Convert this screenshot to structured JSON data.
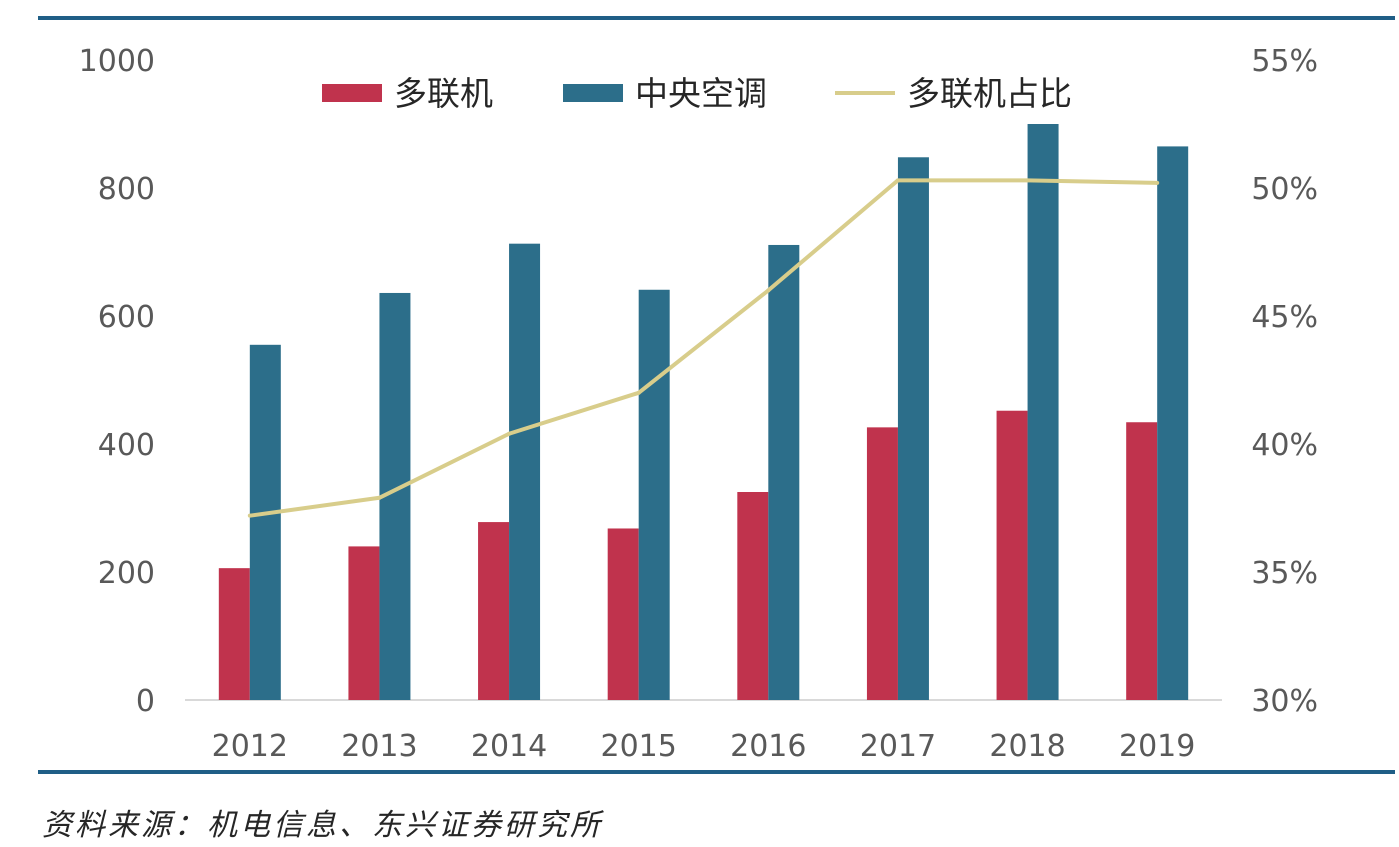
{
  "chart_data": {
    "type": "bar",
    "categories": [
      "2012",
      "2013",
      "2014",
      "2015",
      "2016",
      "2017",
      "2018",
      "2019"
    ],
    "series": [
      {
        "name": "多联机",
        "type": "bar",
        "axis": "left",
        "color": "#c0334d",
        "values": [
          206,
          240,
          278,
          268,
          325,
          426,
          452,
          434
        ]
      },
      {
        "name": "中央空调",
        "type": "bar",
        "axis": "left",
        "color": "#2c6e8a",
        "values": [
          555,
          636,
          713,
          641,
          711,
          848,
          900,
          865
        ]
      },
      {
        "name": "多联机占比",
        "type": "line",
        "axis": "right",
        "color": "#d8cd8b",
        "values": [
          37.2,
          37.9,
          40.4,
          42.0,
          46.0,
          50.3,
          50.3,
          50.2
        ]
      }
    ],
    "y_left": {
      "min": 0,
      "max": 1000,
      "ticks": [
        "0",
        "200",
        "400",
        "600",
        "800",
        "1000"
      ]
    },
    "y_right": {
      "min": 30,
      "max": 55,
      "ticks": [
        "30%",
        "35%",
        "40%",
        "45%",
        "50%",
        "55%"
      ]
    },
    "legend_position": "top",
    "grid": false
  },
  "source": "资料来源：机电信息、东兴证券研究所"
}
